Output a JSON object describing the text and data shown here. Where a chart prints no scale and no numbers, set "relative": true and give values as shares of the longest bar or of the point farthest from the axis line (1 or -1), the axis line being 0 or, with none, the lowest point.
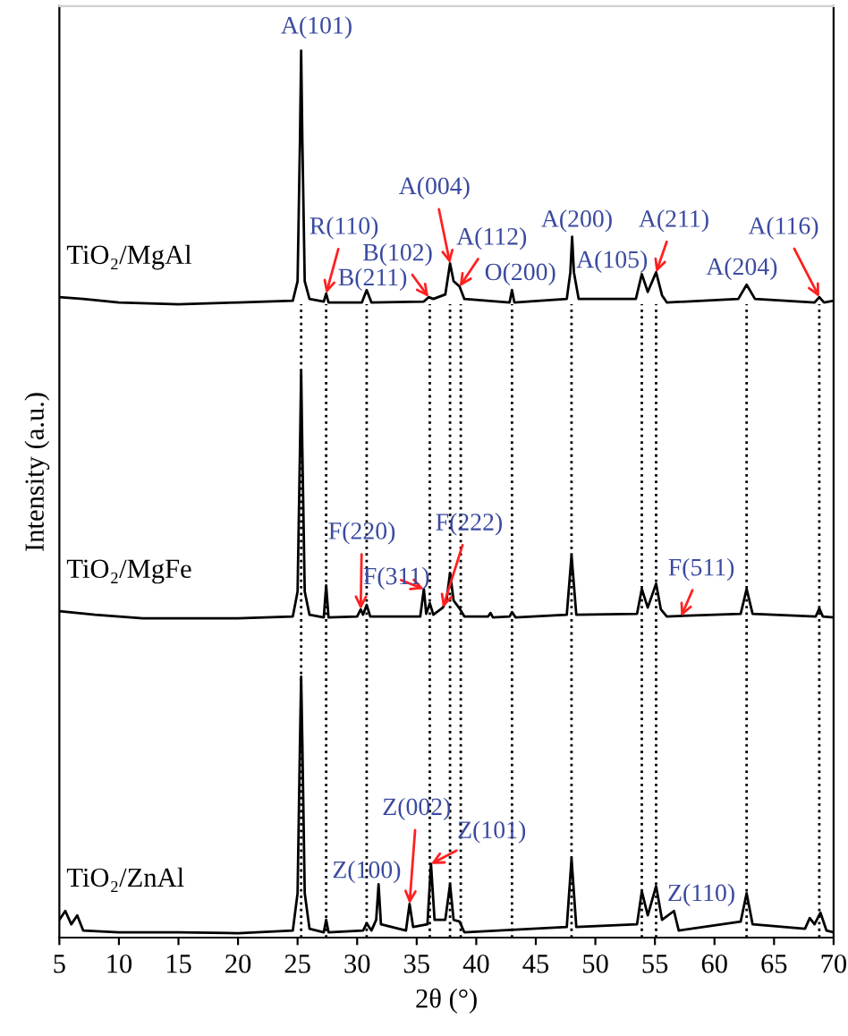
{
  "chart_data": {
    "type": "line",
    "relative": true,
    "xlabel": "2θ (°)",
    "ylabel": "Intensity (a.u.)",
    "xlim": [
      5,
      70
    ],
    "xticks": [
      5,
      10,
      15,
      20,
      25,
      30,
      35,
      40,
      45,
      50,
      55,
      60,
      65,
      70
    ],
    "line_style": "solid",
    "series": [
      {
        "name": "TiO₂/MgAl",
        "color": "#000000",
        "x": [
          5,
          7,
          10,
          15,
          20,
          24.6,
          25.0,
          25.2,
          25.3,
          25.4,
          25.6,
          26.0,
          27.2,
          27.4,
          27.6,
          30.4,
          30.8,
          31.2,
          35.6,
          36.0,
          36.4,
          37.4,
          37.8,
          38.1,
          38.6,
          39.0,
          42.8,
          43.0,
          43.2,
          47.6,
          47.9,
          48.05,
          48.2,
          48.6,
          53.4,
          53.9,
          54.4,
          55.1,
          55.6,
          56.0,
          62.0,
          62.7,
          63.4,
          68.4,
          68.8,
          69.2,
          70
        ],
        "values": [
          0.722,
          0.72,
          0.716,
          0.714,
          0.716,
          0.718,
          0.74,
          0.9,
          1.0,
          0.9,
          0.74,
          0.72,
          0.717,
          0.726,
          0.716,
          0.716,
          0.73,
          0.716,
          0.717,
          0.722,
          0.72,
          0.725,
          0.76,
          0.74,
          0.734,
          0.72,
          0.716,
          0.73,
          0.716,
          0.72,
          0.75,
          0.79,
          0.75,
          0.72,
          0.72,
          0.748,
          0.728,
          0.75,
          0.724,
          0.716,
          0.72,
          0.736,
          0.72,
          0.716,
          0.722,
          0.716,
          0.718
        ]
      },
      {
        "name": "TiO₂/MgFe",
        "color": "#000000",
        "x": [
          5,
          8,
          12,
          20,
          24.6,
          25.0,
          25.2,
          25.3,
          25.4,
          25.6,
          26.0,
          27.2,
          27.4,
          27.6,
          30.0,
          30.3,
          30.5,
          30.8,
          31.1,
          35.3,
          35.6,
          35.8,
          36.1,
          36.4,
          37.2,
          37.5,
          37.8,
          38.1,
          38.6,
          39.0,
          41.0,
          41.2,
          41.4,
          42.8,
          43.0,
          43.3,
          47.6,
          48.0,
          48.4,
          53.5,
          53.9,
          54.4,
          55.1,
          55.5,
          56.0,
          62.2,
          62.7,
          63.2,
          68.5,
          68.8,
          69.1,
          70
        ],
        "values": [
          0.368,
          0.364,
          0.36,
          0.36,
          0.362,
          0.39,
          0.55,
          0.639,
          0.55,
          0.39,
          0.364,
          0.361,
          0.397,
          0.361,
          0.362,
          0.37,
          0.364,
          0.375,
          0.362,
          0.362,
          0.393,
          0.365,
          0.377,
          0.364,
          0.372,
          0.38,
          0.411,
          0.38,
          0.371,
          0.362,
          0.362,
          0.366,
          0.361,
          0.362,
          0.367,
          0.361,
          0.364,
          0.431,
          0.364,
          0.365,
          0.393,
          0.372,
          0.399,
          0.37,
          0.362,
          0.365,
          0.393,
          0.365,
          0.362,
          0.371,
          0.362,
          0.361
        ]
      },
      {
        "name": "TiO₂/ZnAl",
        "color": "#000000",
        "x": [
          5,
          5.5,
          6,
          6.5,
          7,
          10,
          15,
          20,
          24.6,
          25.0,
          25.2,
          25.3,
          25.4,
          25.6,
          26.0,
          27.2,
          27.4,
          27.6,
          30.5,
          30.8,
          31.2,
          31.6,
          31.8,
          32.0,
          34.1,
          34.4,
          34.7,
          35.9,
          36.2,
          36.5,
          37.0,
          37.4,
          37.8,
          38.1,
          38.6,
          39.0,
          47.6,
          48.0,
          48.4,
          53.5,
          53.9,
          54.4,
          55.1,
          55.6,
          56.6,
          57.0,
          62.2,
          62.7,
          63.2,
          67.6,
          68.0,
          68.4,
          68.9,
          69.4,
          70
        ],
        "values": [
          0.02,
          0.03,
          0.015,
          0.025,
          0.008,
          0.006,
          0.006,
          0.005,
          0.008,
          0.05,
          0.22,
          0.294,
          0.22,
          0.05,
          0.01,
          0.006,
          0.02,
          0.006,
          0.008,
          0.016,
          0.008,
          0.02,
          0.06,
          0.015,
          0.008,
          0.038,
          0.012,
          0.015,
          0.083,
          0.02,
          0.02,
          0.02,
          0.06,
          0.02,
          0.018,
          0.006,
          0.012,
          0.089,
          0.012,
          0.015,
          0.052,
          0.025,
          0.058,
          0.02,
          0.03,
          0.008,
          0.018,
          0.05,
          0.015,
          0.01,
          0.022,
          0.015,
          0.028,
          0.008,
          0.006
        ]
      }
    ],
    "ref_lines": [
      {
        "axis": "x",
        "value": 25.3,
        "label": null,
        "line_style": "dotted",
        "color": "#000000"
      },
      {
        "axis": "x",
        "value": 27.4,
        "label": null,
        "line_style": "dotted",
        "color": "#000000"
      },
      {
        "axis": "x",
        "value": 30.8,
        "label": null,
        "line_style": "dotted",
        "color": "#000000"
      },
      {
        "axis": "x",
        "value": 36.1,
        "label": null,
        "line_style": "dotted",
        "color": "#000000"
      },
      {
        "axis": "x",
        "value": 37.8,
        "label": null,
        "line_style": "dotted",
        "color": "#000000"
      },
      {
        "axis": "x",
        "value": 38.7,
        "label": null,
        "line_style": "dotted",
        "color": "#000000"
      },
      {
        "axis": "x",
        "value": 43.0,
        "label": null,
        "line_style": "dotted",
        "color": "#000000"
      },
      {
        "axis": "x",
        "value": 48.0,
        "label": null,
        "line_style": "dotted",
        "color": "#000000"
      },
      {
        "axis": "x",
        "value": 53.9,
        "label": null,
        "line_style": "dotted",
        "color": "#000000"
      },
      {
        "axis": "x",
        "value": 55.1,
        "label": null,
        "line_style": "dotted",
        "color": "#000000"
      },
      {
        "axis": "x",
        "value": 62.7,
        "label": null,
        "line_style": "dotted",
        "color": "#000000"
      },
      {
        "axis": "x",
        "value": 68.8,
        "label": null,
        "line_style": "dotted",
        "color": "#000000"
      }
    ],
    "annotations": [
      {
        "text": "A(101)",
        "x": 25.3,
        "y": 1.0
      },
      {
        "text": "R(110)",
        "x": 27.4,
        "y": 0.726
      },
      {
        "text": "B(211)",
        "x": 30.8,
        "y": 0.73
      },
      {
        "text": "B(102)",
        "x": 36.0,
        "y": 0.722
      },
      {
        "text": "A(004)",
        "x": 37.8,
        "y": 0.76
      },
      {
        "text": "A(112)",
        "x": 38.6,
        "y": 0.734
      },
      {
        "text": "O(200)",
        "x": 43.0,
        "y": 0.73
      },
      {
        "text": "A(200)",
        "x": 48.05,
        "y": 0.79
      },
      {
        "text": "A(105)",
        "x": 53.9,
        "y": 0.748
      },
      {
        "text": "A(211)",
        "x": 55.1,
        "y": 0.75
      },
      {
        "text": "A(204)",
        "x": 62.7,
        "y": 0.736
      },
      {
        "text": "A(116)",
        "x": 68.8,
        "y": 0.722
      },
      {
        "text": "F(220)",
        "x": 30.3,
        "y": 0.37
      },
      {
        "text": "F(311)",
        "x": 35.6,
        "y": 0.393
      },
      {
        "text": "F(222)",
        "x": 37.2,
        "y": 0.372
      },
      {
        "text": "F(511)",
        "x": 57.2,
        "y": 0.362
      },
      {
        "text": "Z(100)",
        "x": 31.8,
        "y": 0.06
      },
      {
        "text": "Z(002)",
        "x": 34.4,
        "y": 0.038
      },
      {
        "text": "Z(101)",
        "x": 36.2,
        "y": 0.083
      },
      {
        "text": "Z(110)",
        "x": 56.6,
        "y": 0.03
      }
    ]
  }
}
